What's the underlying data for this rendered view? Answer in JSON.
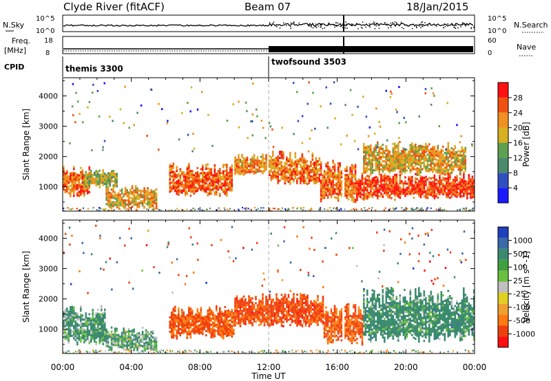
{
  "header": {
    "station": "Clyde River (fitACF)",
    "beam": "Beam 07",
    "date": "18/Jan/2015"
  },
  "strips": {
    "nsky_label": "N.Sky",
    "nsky_ticks": [
      "10^5",
      "10^0"
    ],
    "nsearch_label": "N.Search",
    "nsearch_ticks": [
      "10^5",
      "10^0"
    ],
    "freq_label_1": "Freq.",
    "freq_label_2": "[MHz]",
    "freq_ticks": [
      "18",
      "8"
    ],
    "nave_label": "Nave",
    "nave_ticks": [
      "60",
      "0"
    ],
    "cpid_label": "CPID",
    "cpid_1": "themis 3300",
    "cpid_2": "twofsound 3503"
  },
  "colors": {
    "power": [
      "#1a1aff",
      "#3050c0",
      "#4a8a6a",
      "#5fa050",
      "#d8b020",
      "#f09020",
      "#f05010",
      "#ff1010"
    ],
    "velocity": [
      "#2040c0",
      "#3a6aa8",
      "#3a8a70",
      "#40a040",
      "#6cc040",
      "#c0c0c0",
      "#e0d020",
      "#f0a030",
      "#ff7a10",
      "#f04010",
      "#ff1010"
    ]
  },
  "chart_data": [
    {
      "type": "heatmap",
      "title": "Power",
      "xlabel": "",
      "ylabel": "Slant Range [km]",
      "xlim": [
        0,
        24
      ],
      "ylim": [
        200,
        4600
      ],
      "x_ticks": [
        "00:00",
        "04:00",
        "08:00",
        "12:00",
        "16:00",
        "20:00",
        "00:00"
      ],
      "y_ticks": [
        1000,
        2000,
        3000,
        4000
      ],
      "colorbar_label": "Power [dB]",
      "colorbar_ticks": [
        "28",
        "24",
        "20",
        "16",
        "12",
        "8",
        "4"
      ],
      "bands": [
        {
          "x": [
            0.0,
            1.6
          ],
          "y": [
            700,
            1700
          ],
          "value": 26
        },
        {
          "x": [
            1.2,
            3.2
          ],
          "y": [
            1000,
            1600
          ],
          "value": 18
        },
        {
          "x": [
            2.5,
            5.5
          ],
          "y": [
            300,
            1100
          ],
          "value": 22
        },
        {
          "x": [
            6.2,
            9.9
          ],
          "y": [
            700,
            1800
          ],
          "value": 27
        },
        {
          "x": [
            10.0,
            11.9
          ],
          "y": [
            1400,
            2100
          ],
          "value": 24
        },
        {
          "x": [
            12.0,
            15.0
          ],
          "y": [
            1100,
            2200
          ],
          "value": 26
        },
        {
          "x": [
            15.0,
            17.1
          ],
          "y": [
            500,
            1900
          ],
          "value": 26
        },
        {
          "x": [
            17.1,
            24.0
          ],
          "y": [
            600,
            1500
          ],
          "value": 29
        },
        {
          "x": [
            17.5,
            23.5
          ],
          "y": [
            1400,
            2500
          ],
          "value": 22
        }
      ]
    },
    {
      "type": "heatmap",
      "title": "Velocity",
      "xlabel": "Time UT",
      "ylabel": "Slant Range [km]",
      "xlim": [
        0,
        24
      ],
      "ylim": [
        200,
        4600
      ],
      "x_ticks": [
        "00:00",
        "04:00",
        "08:00",
        "12:00",
        "16:00",
        "20:00",
        "00:00"
      ],
      "y_ticks": [
        1000,
        2000,
        3000,
        4000
      ],
      "colorbar_label": "Velocity [m s^-1]",
      "colorbar_ticks": [
        "1000",
        "500",
        "100",
        "25",
        "-25",
        "-100",
        "-500",
        "-1000"
      ],
      "bands": [
        {
          "x": [
            0.0,
            2.5
          ],
          "y": [
            500,
            1800
          ],
          "value": 100
        },
        {
          "x": [
            2.5,
            5.5
          ],
          "y": [
            300,
            1100
          ],
          "value": 60
        },
        {
          "x": [
            6.2,
            10.0
          ],
          "y": [
            700,
            1800
          ],
          "value": -300
        },
        {
          "x": [
            10.0,
            15.2
          ],
          "y": [
            1100,
            2200
          ],
          "value": -400
        },
        {
          "x": [
            15.2,
            17.5
          ],
          "y": [
            500,
            1900
          ],
          "value": -250
        },
        {
          "x": [
            17.5,
            24.0
          ],
          "y": [
            600,
            2400
          ],
          "value": 150
        }
      ]
    }
  ]
}
